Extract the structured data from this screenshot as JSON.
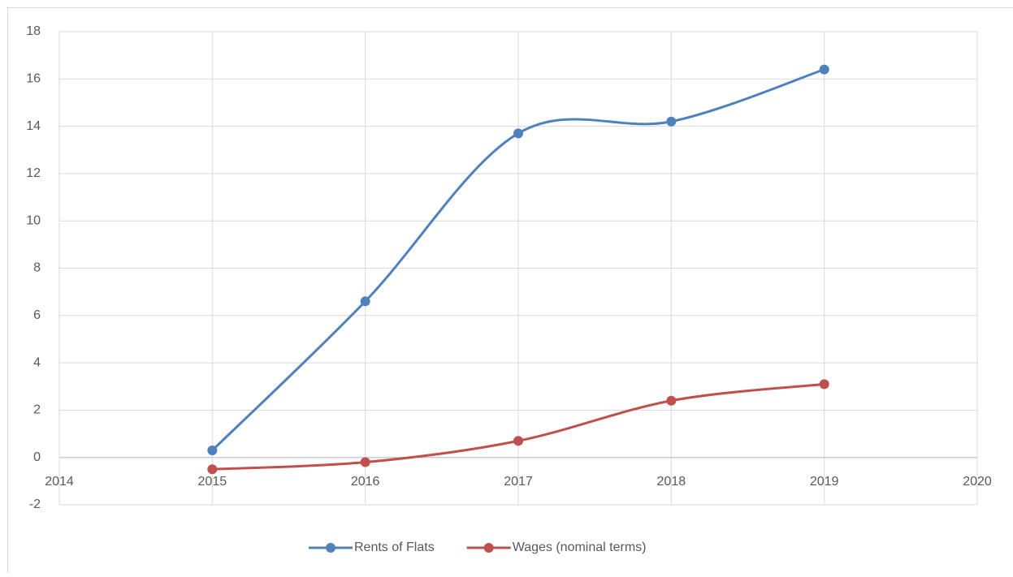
{
  "chart_data": {
    "type": "line",
    "x": [
      2015,
      2016,
      2017,
      2018,
      2019
    ],
    "series": [
      {
        "name": "Rents of Flats",
        "color": "#4f81bd",
        "values": [
          0.3,
          6.6,
          13.7,
          14.2,
          16.4
        ]
      },
      {
        "name": "Wages (nominal terms)",
        "color": "#c0504d",
        "values": [
          -0.5,
          -0.2,
          0.7,
          2.4,
          3.1
        ]
      }
    ],
    "xlim": [
      2014,
      2020
    ],
    "xticks": [
      2014,
      2015,
      2016,
      2017,
      2018,
      2019,
      2020
    ],
    "ylim": [
      -2,
      18
    ],
    "yticks": [
      -2,
      0,
      2,
      4,
      6,
      8,
      10,
      12,
      14,
      16,
      18
    ],
    "grid": true,
    "smooth": true,
    "legend": "bottom"
  }
}
